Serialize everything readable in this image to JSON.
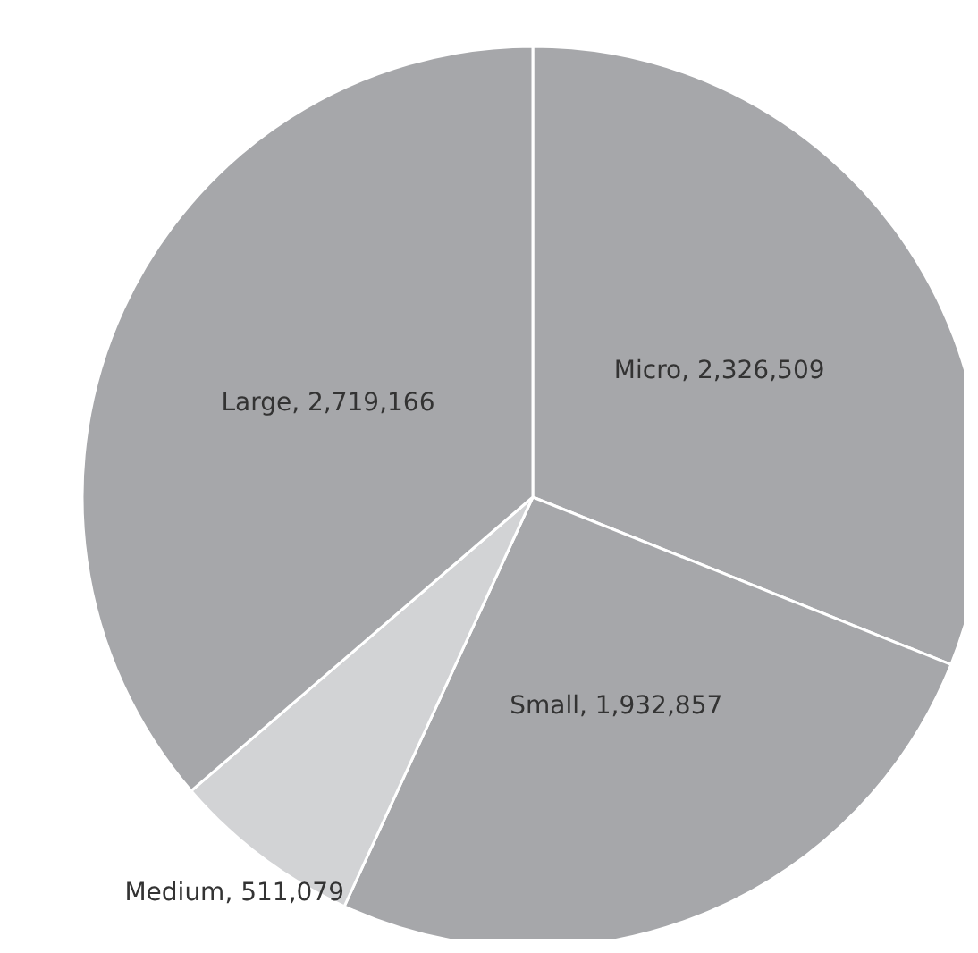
{
  "chart_data": {
    "type": "pie",
    "categories": [
      "Micro",
      "Small",
      "Medium",
      "Large"
    ],
    "values": [
      2326509,
      1932857,
      511079,
      2719166
    ],
    "value_labels": [
      "2,326,509",
      "1,932,857",
      "511,079",
      "2,719,166"
    ],
    "colors": [
      "#a6a7aa",
      "#a6a7aa",
      "#d2d3d5",
      "#a6a7aa"
    ]
  }
}
